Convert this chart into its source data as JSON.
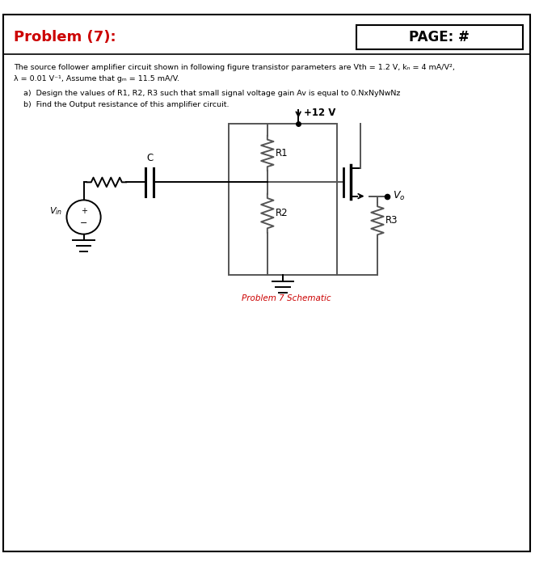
{
  "title": "Problem (7):",
  "page": "PAGE: #",
  "desc_line1": "The source follower amplifier circuit shown in following figure transistor parameters are Vth = 1.2 V, kₙ = 4 mA/V²,",
  "desc_line2": "λ = 0.01 V⁻¹, Assume that gₘ = 11.5 mA/V.",
  "part_a": "a)  Design the values of R1, R2, R3 such that small signal voltage gain Av is equal to 0.NxNyNwNz",
  "part_b": "b)  Find the Output resistance of this amplifier circuit.",
  "caption": "Problem 7 Schematic",
  "bg_color": "#ffffff",
  "border_color": "#000000",
  "title_color": "#cc0000",
  "caption_color": "#cc0000",
  "text_color": "#000000",
  "line_color": "#555555"
}
